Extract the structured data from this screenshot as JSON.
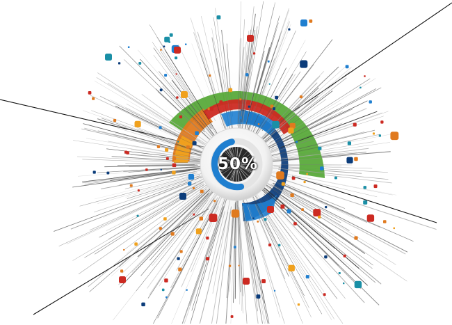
{
  "progress": {
    "label": "50%",
    "value": 0.5
  },
  "colors": {
    "green": "#5aaa3b",
    "orange": "#e07a1f",
    "amber": "#f0a11d",
    "red": "#cc2a22",
    "blue": "#1f7fd0",
    "navy": "#0b3c7a",
    "teal": "#1a8fa6",
    "background": "#ffffff",
    "line": "#111111"
  }
}
